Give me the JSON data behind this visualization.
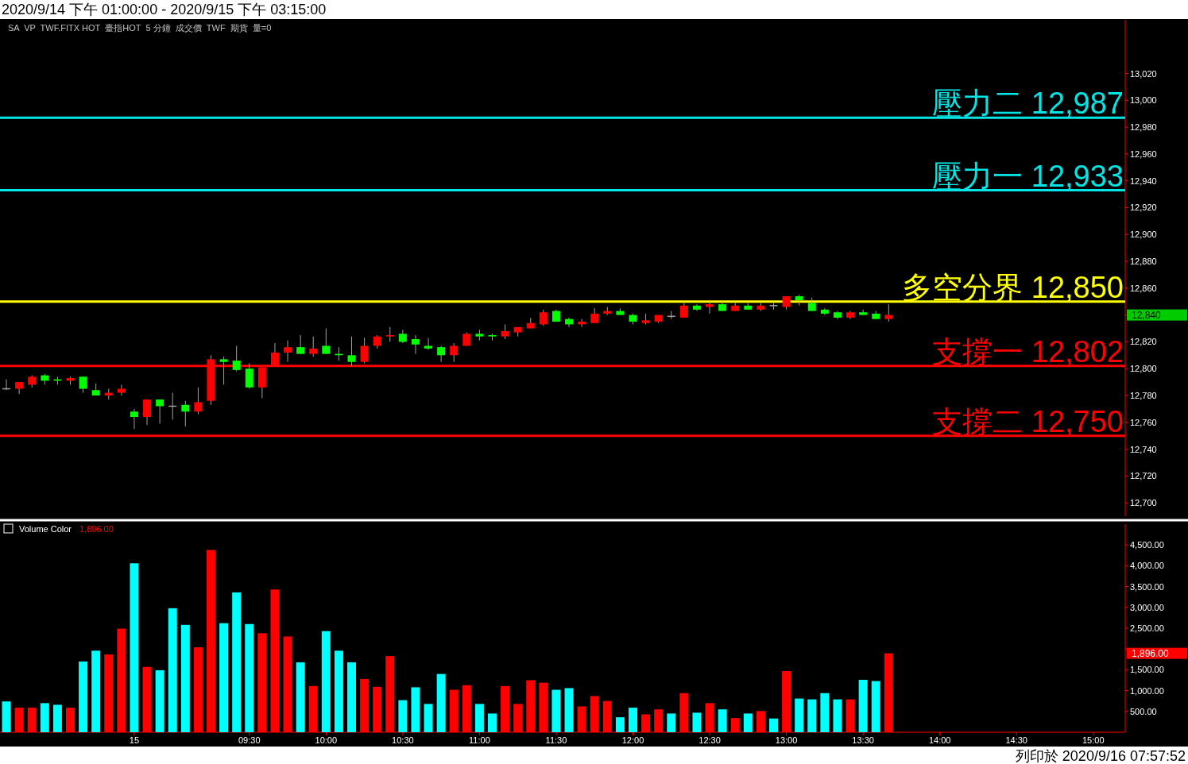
{
  "chart_data": [
    {
      "type": "candlestick",
      "title": "2020/9/14 下午 01:00:00 - 2020/9/15 下午 03:15:00",
      "subtitle": "SA  VP  TWF.FITX HOT  臺指HOT  5 分鐘  成交價  TWF  期貨  量=0",
      "categories": [
        null,
        null,
        null,
        null,
        null,
        null,
        null,
        null,
        null,
        null,
        null,
        null,
        null,
        null,
        null,
        null,
        null,
        null,
        null,
        null,
        null,
        null,
        null,
        null,
        null,
        null,
        null,
        null,
        null,
        null,
        null,
        null,
        null,
        null,
        null,
        null,
        null,
        null,
        null,
        null,
        null,
        null,
        null,
        null,
        null,
        null,
        null,
        null,
        null,
        null,
        null,
        null,
        null,
        null,
        null,
        null,
        null,
        null,
        null,
        null,
        null,
        null,
        null,
        null,
        null,
        null,
        null,
        null,
        null,
        null,
        null,
        null,
        null,
        null,
        null,
        null,
        null,
        null,
        null,
        null,
        null,
        null,
        null,
        null,
        null,
        null,
        null,
        null
      ],
      "ohlc": [
        [
          12785,
          12792,
          12784,
          12785
        ],
        [
          12785,
          12790,
          12781,
          12790
        ],
        [
          12788,
          12795,
          12786,
          12794
        ],
        [
          12795,
          12796,
          12788,
          12791
        ],
        [
          12792,
          12794,
          12788,
          12791
        ],
        [
          12791,
          12794,
          12788,
          12793
        ],
        [
          12794,
          12794,
          12782,
          12785
        ],
        [
          12784,
          12789,
          12780,
          12780
        ],
        [
          12780,
          12785,
          12777,
          12782
        ],
        [
          12782,
          12788,
          12780,
          12785
        ],
        [
          12768,
          12770,
          12755,
          12764
        ],
        [
          12764,
          12777,
          12758,
          12777
        ],
        [
          12777,
          12777,
          12759,
          12772
        ],
        [
          12772,
          12782,
          12762,
          12772
        ],
        [
          12773,
          12776,
          12757,
          12768
        ],
        [
          12768,
          12786,
          12766,
          12775
        ],
        [
          12776,
          12810,
          12773,
          12807
        ],
        [
          12807,
          12809,
          12788,
          12805
        ],
        [
          12806,
          12817,
          12798,
          12799
        ],
        [
          12800,
          12804,
          12785,
          12786
        ],
        [
          12786,
          12801,
          12778,
          12801
        ],
        [
          12802,
          12819,
          12802,
          12812
        ],
        [
          12812,
          12821,
          12805,
          12816
        ],
        [
          12816,
          12825,
          12811,
          12811
        ],
        [
          12811,
          12824,
          12809,
          12815
        ],
        [
          12817,
          12830,
          12811,
          12811
        ],
        [
          12811,
          12816,
          12806,
          12810
        ],
        [
          12810,
          12824,
          12802,
          12805
        ],
        [
          12805,
          12823,
          12804,
          12817
        ],
        [
          12817,
          12825,
          12815,
          12824
        ],
        [
          12824,
          12831,
          12820,
          12825
        ],
        [
          12826,
          12829,
          12819,
          12820
        ],
        [
          12822,
          12825,
          12811,
          12818
        ],
        [
          12817,
          12823,
          12814,
          12815
        ],
        [
          12816,
          12817,
          12805,
          12810
        ],
        [
          12810,
          12819,
          12805,
          12817
        ],
        [
          12817,
          12827,
          12817,
          12826
        ],
        [
          12826,
          12829,
          12821,
          12824
        ],
        [
          12825,
          12826,
          12821,
          12824
        ],
        [
          12824,
          12833,
          12822,
          12828
        ],
        [
          12827,
          12831,
          12824,
          12831
        ],
        [
          12830,
          12838,
          12830,
          12834
        ],
        [
          12833,
          12844,
          12832,
          12842
        ],
        [
          12843,
          12844,
          12835,
          12835
        ],
        [
          12837,
          12838,
          12831,
          12833
        ],
        [
          12833,
          12837,
          12831,
          12835
        ],
        [
          12834,
          12845,
          12834,
          12841
        ],
        [
          12841,
          12846,
          12840,
          12843
        ],
        [
          12843,
          12845,
          12840,
          12840
        ],
        [
          12840,
          12841,
          12833,
          12835
        ],
        [
          12834,
          12841,
          12833,
          12836
        ],
        [
          12835,
          12840,
          12834,
          12840
        ],
        [
          12839,
          12843,
          12837,
          12839
        ],
        [
          12838,
          12849,
          12838,
          12847
        ],
        [
          12847,
          12848,
          12843,
          12844
        ],
        [
          12846,
          12850,
          12841,
          12848
        ],
        [
          12848,
          12850,
          12843,
          12843
        ],
        [
          12843,
          12849,
          12843,
          12847
        ],
        [
          12847,
          12849,
          12844,
          12844
        ],
        [
          12844,
          12849,
          12843,
          12847
        ],
        [
          12847,
          12849,
          12844,
          12847
        ],
        [
          12846,
          12854,
          12844,
          12854
        ],
        [
          12854,
          12855,
          12847,
          12851
        ],
        [
          12849,
          12853,
          12843,
          12843
        ],
        [
          12844,
          12845,
          12840,
          12841
        ],
        [
          12842,
          12843,
          12837,
          12838
        ],
        [
          12838,
          12843,
          12837,
          12842
        ],
        [
          12842,
          12844,
          12840,
          12840
        ],
        [
          12841,
          12843,
          12837,
          12837
        ],
        [
          12837,
          12848,
          12835,
          12840
        ],
        null,
        null,
        null,
        null,
        null,
        null,
        null,
        null,
        null,
        null,
        null,
        null,
        null,
        null,
        null,
        null,
        null,
        null
      ],
      "colors": [
        "#a0a0a0",
        "#ff0000",
        "#ff0000",
        "#00ff00",
        "#00ff00",
        "#ff0000",
        "#00ff00",
        "#00ff00",
        "#ff0000",
        "#ff0000",
        "#00ff00",
        "#ff0000",
        "#00ff00",
        "#a0a0a0",
        "#00ff00",
        "#ff0000",
        "#ff0000",
        "#00ff00",
        "#00ff00",
        "#00ff00",
        "#ff0000",
        "#ff0000",
        "#ff0000",
        "#00ff00",
        "#ff0000",
        "#00ff00",
        "#00ff00",
        "#00ff00",
        "#ff0000",
        "#ff0000",
        "#ff0000",
        "#00ff00",
        "#00ff00",
        "#00ff00",
        "#00ff00",
        "#ff0000",
        "#ff0000",
        "#00ff00",
        "#00ff00",
        "#ff0000",
        "#ff0000",
        "#ff0000",
        "#ff0000",
        "#00ff00",
        "#00ff00",
        "#ff0000",
        "#ff0000",
        "#ff0000",
        "#00ff00",
        "#00ff00",
        "#ff0000",
        "#ff0000",
        "#a0a0a0",
        "#ff0000",
        "#00ff00",
        "#ff0000",
        "#00ff00",
        "#ff0000",
        "#00ff00",
        "#ff0000",
        "#a0a0a0",
        "#ff0000",
        "#00ff00",
        "#00ff00",
        "#00ff00",
        "#00ff00",
        "#ff0000",
        "#00ff00",
        "#00ff00",
        "#ff0000",
        null,
        null,
        null,
        null,
        null,
        null,
        null,
        null,
        null,
        null,
        null,
        null,
        null,
        null,
        null,
        null,
        null,
        null
      ],
      "ylim": [
        12690,
        13060
      ],
      "yticks": [
        {
          "value": 12700,
          "label": "12,700"
        },
        {
          "value": 12720,
          "label": "12,720"
        },
        {
          "value": 12740,
          "label": "12,740"
        },
        {
          "value": 12760,
          "label": "12,760"
        },
        {
          "value": 12780,
          "label": "12,780"
        },
        {
          "value": 12800,
          "label": "12,800"
        },
        {
          "value": 12820,
          "label": "12,820"
        },
        {
          "value": 12840,
          "label": null
        },
        {
          "value": 12860,
          "label": "12,860"
        },
        {
          "value": 12880,
          "label": "12,880"
        },
        {
          "value": 12900,
          "label": "12,900"
        },
        {
          "value": 12920,
          "label": "12,920"
        },
        {
          "value": 12940,
          "label": "12,940"
        },
        {
          "value": 12960,
          "label": "12,960"
        },
        {
          "value": 12980,
          "label": "12,980"
        },
        {
          "value": 13000,
          "label": "13,000"
        },
        {
          "value": 13020,
          "label": "13,020"
        }
      ],
      "ref_lines": [
        {
          "axis": "y",
          "value": 12987,
          "label": "壓力二 12,987",
          "color": "#00e5e5"
        },
        {
          "axis": "y",
          "value": 12933,
          "label": "壓力一 12,933",
          "color": "#00e5e5"
        },
        {
          "axis": "y",
          "value": 12850,
          "label": "多空分界 12,850",
          "color": "#ffff00"
        },
        {
          "axis": "y",
          "value": 12802,
          "label": "支撐一 12,802",
          "color": "#ff0000"
        },
        {
          "axis": "y",
          "value": 12750,
          "label": "支撐二 12,750",
          "color": "#ff0000"
        }
      ],
      "annotations": [
        "12,840"
      ],
      "tick_labels": "y"
    },
    {
      "type": "bar",
      "title": "Volume Color",
      "categories": [
        null,
        null,
        null,
        null,
        null,
        null,
        null,
        null,
        null,
        null,
        "15",
        null,
        null,
        null,
        null,
        null,
        null,
        null,
        null,
        "09:30",
        null,
        null,
        null,
        null,
        null,
        "10:00",
        null,
        null,
        null,
        null,
        null,
        "10:30",
        null,
        null,
        null,
        null,
        null,
        "11:00",
        null,
        null,
        null,
        null,
        null,
        "11:30",
        null,
        null,
        null,
        null,
        null,
        "12:00",
        null,
        null,
        null,
        null,
        null,
        "12:30",
        null,
        null,
        null,
        null,
        null,
        "13:00",
        null,
        null,
        null,
        null,
        null,
        "13:30",
        null,
        null,
        null,
        null,
        null,
        "14:00",
        null,
        null,
        null,
        null,
        null,
        "14:30",
        null,
        null,
        null,
        null,
        null,
        "15:00",
        null,
        null
      ],
      "values": [
        740,
        590,
        590,
        700,
        660,
        590,
        1700,
        1960,
        1870,
        2490,
        4060,
        1570,
        1490,
        2980,
        2580,
        2040,
        4380,
        2620,
        3360,
        2600,
        2380,
        3430,
        2300,
        1680,
        1110,
        2430,
        1960,
        1680,
        1280,
        1090,
        1830,
        770,
        1080,
        680,
        1400,
        1020,
        1130,
        680,
        450,
        1110,
        680,
        1250,
        1190,
        1020,
        1060,
        620,
        870,
        750,
        360,
        590,
        430,
        550,
        450,
        940,
        470,
        700,
        550,
        340,
        450,
        510,
        330,
        1470,
        810,
        790,
        940,
        790,
        790,
        1260,
        1230,
        1896,
        null,
        null,
        null,
        null,
        null,
        null,
        null,
        null,
        null,
        null,
        null,
        null,
        null,
        null,
        null,
        null,
        null,
        null
      ],
      "colors": [
        "#00ffff",
        "#ff0000",
        "#ff0000",
        "#00ffff",
        "#00ffff",
        "#ff0000",
        "#00ffff",
        "#00ffff",
        "#ff0000",
        "#ff0000",
        "#00ffff",
        "#ff0000",
        "#00ffff",
        "#00ffff",
        "#00ffff",
        "#ff0000",
        "#ff0000",
        "#00ffff",
        "#00ffff",
        "#00ffff",
        "#ff0000",
        "#ff0000",
        "#ff0000",
        "#00ffff",
        "#ff0000",
        "#00ffff",
        "#00ffff",
        "#00ffff",
        "#ff0000",
        "#ff0000",
        "#ff0000",
        "#00ffff",
        "#00ffff",
        "#00ffff",
        "#00ffff",
        "#ff0000",
        "#ff0000",
        "#00ffff",
        "#00ffff",
        "#ff0000",
        "#ff0000",
        "#ff0000",
        "#ff0000",
        "#00ffff",
        "#00ffff",
        "#ff0000",
        "#ff0000",
        "#ff0000",
        "#00ffff",
        "#00ffff",
        "#ff0000",
        "#ff0000",
        "#00ffff",
        "#ff0000",
        "#00ffff",
        "#ff0000",
        "#00ffff",
        "#ff0000",
        "#00ffff",
        "#ff0000",
        "#00ffff",
        "#ff0000",
        "#00ffff",
        "#00ffff",
        "#00ffff",
        "#00ffff",
        "#ff0000",
        "#00ffff",
        "#00ffff",
        "#ff0000",
        null,
        null,
        null,
        null,
        null,
        null,
        null,
        null,
        null,
        null,
        null,
        null,
        null,
        null,
        null,
        null,
        null,
        null
      ],
      "ylim": [
        0,
        5000
      ],
      "yticks": [
        {
          "value": 500,
          "label": "500.00"
        },
        {
          "value": 1000,
          "label": "1,000.00"
        },
        {
          "value": 1500,
          "label": "1,500.00"
        },
        {
          "value": 2000,
          "label": null
        },
        {
          "value": 2500,
          "label": "2,500.00"
        },
        {
          "value": 3000,
          "label": "3,000.00"
        },
        {
          "value": 3500,
          "label": "3,500.00"
        },
        {
          "value": 4000,
          "label": "4,000.00"
        },
        {
          "value": 4500,
          "label": "4,500.00"
        }
      ],
      "annotations": [
        "1,896.00",
        "列印於 2020/9/16 07:57:52",
        "1,896.00"
      ]
    }
  ]
}
